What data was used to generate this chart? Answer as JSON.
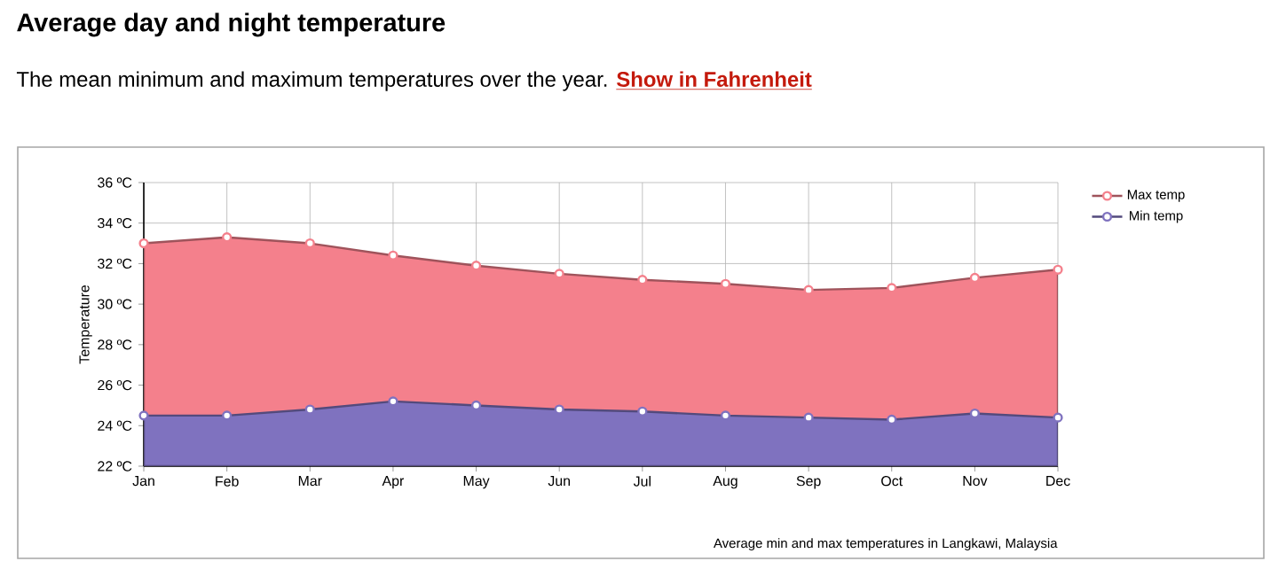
{
  "chart_data": {
    "type": "area",
    "title": "Average day and night temperature",
    "subtitle": "The mean minimum and maximum temperatures over the year.",
    "annotations": [
      "Show in Fahrenheit",
      "Average min and max temperatures in Langkawi, Malaysia"
    ],
    "ylabel": "Temperature",
    "categories": [
      "Jan",
      "Feb",
      "Mar",
      "Apr",
      "May",
      "Jun",
      "Jul",
      "Aug",
      "Sep",
      "Oct",
      "Nov",
      "Dec"
    ],
    "series": [
      {
        "name": "Max temp",
        "color": "#f4808c",
        "values": [
          33.0,
          33.3,
          33.0,
          32.4,
          31.9,
          31.5,
          31.2,
          31.0,
          30.7,
          30.8,
          31.3,
          31.7
        ]
      },
      {
        "name": "Min temp",
        "color": "#7f72bf",
        "values": [
          24.5,
          24.5,
          24.8,
          25.2,
          25.0,
          24.8,
          24.7,
          24.5,
          24.4,
          24.3,
          24.6,
          24.4
        ]
      }
    ],
    "ylim": [
      22,
      36
    ],
    "yticks": [
      {
        "value": 22,
        "label": "22 ºC"
      },
      {
        "value": 24,
        "label": "24 ºC"
      },
      {
        "value": 26,
        "label": "26 ºC"
      },
      {
        "value": 28,
        "label": "28 ºC"
      },
      {
        "value": 30,
        "label": "30 ºC"
      },
      {
        "value": 32,
        "label": "32 ºC"
      },
      {
        "value": 34,
        "label": "34 ºC"
      },
      {
        "value": 36,
        "label": "36 ºC"
      }
    ],
    "grid": true,
    "legend": "top right",
    "marker": "circle",
    "line_style": "solid"
  }
}
